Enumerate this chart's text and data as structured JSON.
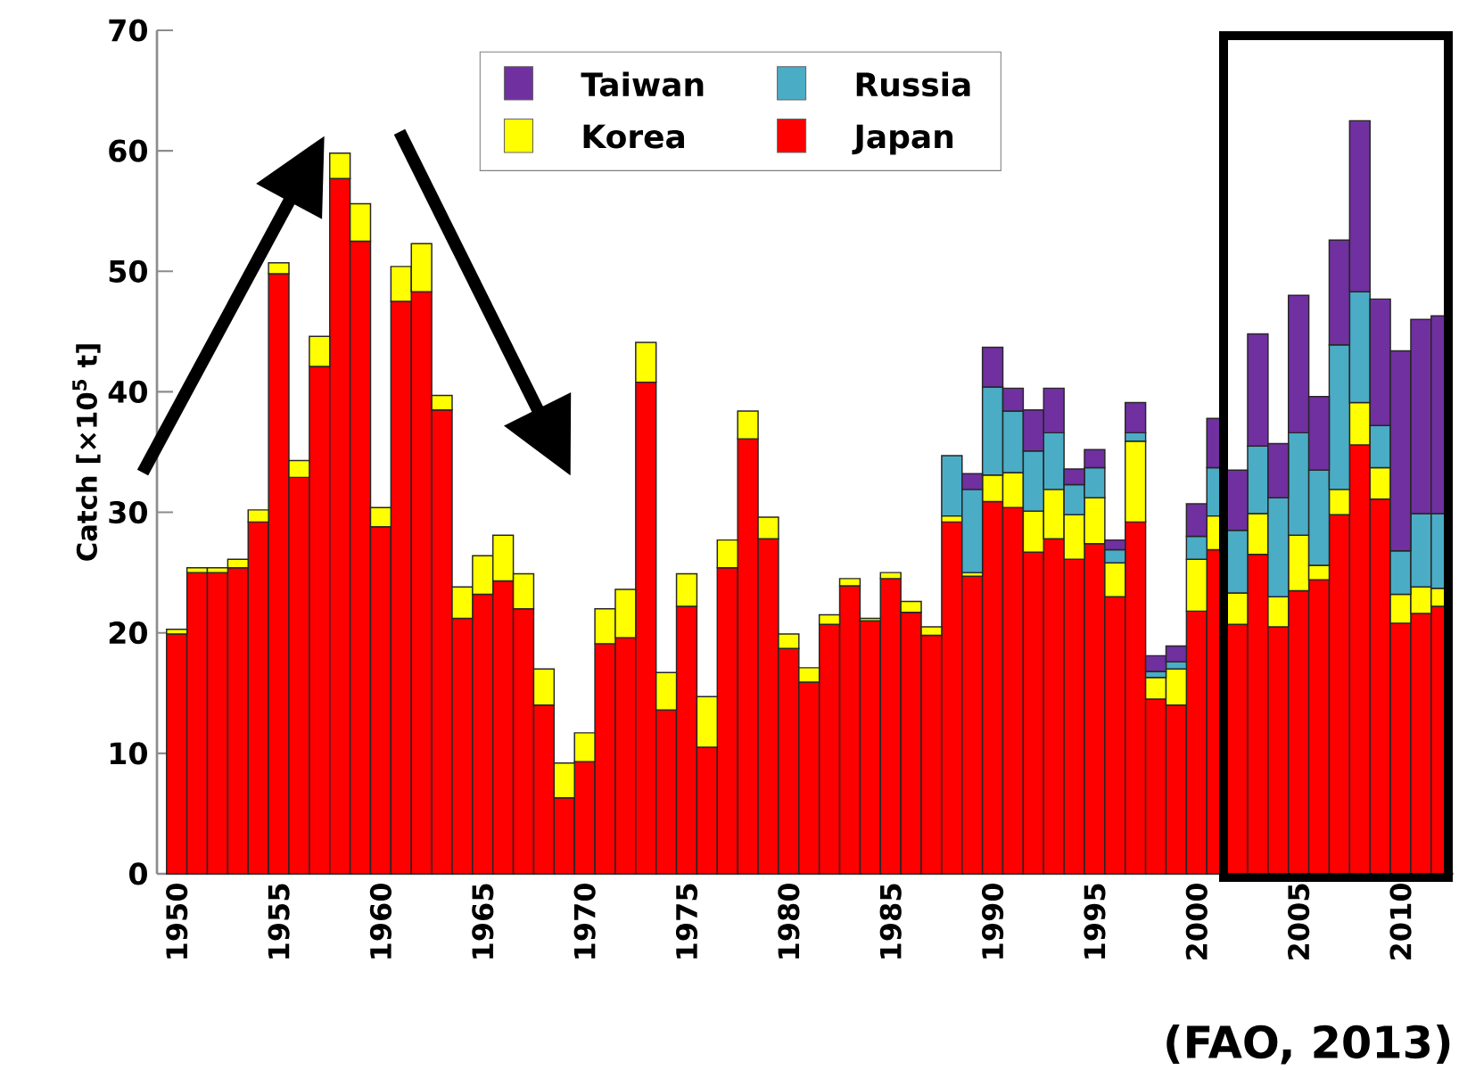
{
  "chart_data": {
    "type": "bar",
    "stacked": true,
    "ylabel": "Catch [×10$^{5}$ t]",
    "annotations": [
      "(FAO, 2013)"
    ],
    "categories": [
      "1950",
      null,
      null,
      null,
      null,
      "1955",
      null,
      null,
      null,
      null,
      "1960",
      null,
      null,
      null,
      null,
      "1965",
      null,
      null,
      null,
      null,
      "1970",
      null,
      null,
      null,
      null,
      "1975",
      null,
      null,
      null,
      null,
      "1980",
      null,
      null,
      null,
      null,
      "1985",
      null,
      null,
      null,
      null,
      "1990",
      null,
      null,
      null,
      null,
      "1995",
      null,
      null,
      null,
      null,
      "2000",
      null,
      null,
      null,
      null,
      "2005",
      null,
      null,
      null,
      null,
      "2010",
      null,
      null
    ],
    "series": [
      {
        "name": "Japan",
        "color": "#ff0000",
        "values": [
          19.9,
          25.0,
          25.0,
          25.4,
          29.2,
          49.8,
          32.9,
          42.1,
          57.7,
          52.5,
          28.8,
          47.5,
          48.3,
          38.5,
          21.2,
          23.2,
          24.3,
          22.0,
          14.0,
          6.3,
          9.3,
          19.1,
          19.6,
          40.8,
          13.6,
          22.2,
          10.5,
          25.4,
          36.1,
          27.8,
          18.7,
          15.9,
          20.7,
          23.9,
          21.0,
          24.5,
          21.7,
          19.8,
          29.2,
          24.7,
          30.9,
          30.4,
          26.7,
          27.8,
          26.1,
          27.4,
          23.0,
          29.2,
          14.5,
          14.0,
          21.8,
          26.9,
          20.7,
          26.5,
          20.5,
          23.5,
          24.4,
          29.8,
          35.6,
          31.1,
          20.8,
          21.6,
          22.2
        ]
      },
      {
        "name": "Korea",
        "color": "#ffff00",
        "values": [
          0.4,
          0.4,
          0.4,
          0.7,
          1.0,
          0.9,
          1.4,
          2.5,
          2.1,
          3.1,
          1.6,
          2.9,
          4.0,
          1.2,
          2.6,
          3.2,
          3.8,
          2.9,
          3.0,
          2.9,
          2.4,
          2.9,
          4.0,
          3.3,
          3.1,
          2.7,
          4.2,
          2.3,
          2.3,
          1.8,
          1.2,
          1.2,
          0.8,
          0.6,
          0.2,
          0.5,
          0.9,
          0.7,
          0.5,
          0.3,
          2.2,
          2.9,
          3.4,
          4.1,
          3.7,
          3.8,
          2.8,
          6.7,
          1.8,
          3.0,
          4.3,
          2.8,
          2.6,
          3.4,
          2.5,
          4.6,
          1.2,
          2.1,
          3.5,
          2.6,
          2.4,
          2.2,
          1.5
        ]
      },
      {
        "name": "Russia",
        "color": "#4bacc6",
        "values": [
          null,
          null,
          null,
          null,
          null,
          null,
          null,
          null,
          null,
          null,
          null,
          null,
          null,
          null,
          null,
          null,
          null,
          null,
          null,
          null,
          null,
          null,
          null,
          null,
          null,
          null,
          null,
          null,
          null,
          null,
          null,
          null,
          null,
          null,
          null,
          null,
          null,
          null,
          5.0,
          6.9,
          7.3,
          5.1,
          5.0,
          4.7,
          2.5,
          2.5,
          1.1,
          0.7,
          0.5,
          0.6,
          1.9,
          4.0,
          5.2,
          5.6,
          8.2,
          8.5,
          7.9,
          12.0,
          9.2,
          3.5,
          3.6,
          6.1,
          6.2
        ]
      },
      {
        "name": "Taiwan",
        "color": "#7030a0",
        "values": [
          null,
          null,
          null,
          null,
          null,
          null,
          null,
          null,
          null,
          null,
          null,
          null,
          null,
          null,
          null,
          null,
          null,
          null,
          null,
          null,
          null,
          null,
          null,
          null,
          null,
          null,
          null,
          null,
          null,
          null,
          null,
          null,
          null,
          null,
          null,
          null,
          null,
          null,
          null,
          1.3,
          3.3,
          1.9,
          3.4,
          3.7,
          1.3,
          1.5,
          0.8,
          2.5,
          1.3,
          1.3,
          2.7,
          4.1,
          5.0,
          9.3,
          4.5,
          11.4,
          6.1,
          8.7,
          14.2,
          10.5,
          16.6,
          16.1,
          16.4
        ]
      }
    ],
    "ylim": [
      0,
      70
    ],
    "yticks": [
      0,
      10,
      20,
      30,
      40,
      50,
      60,
      70
    ],
    "legend": "top"
  }
}
